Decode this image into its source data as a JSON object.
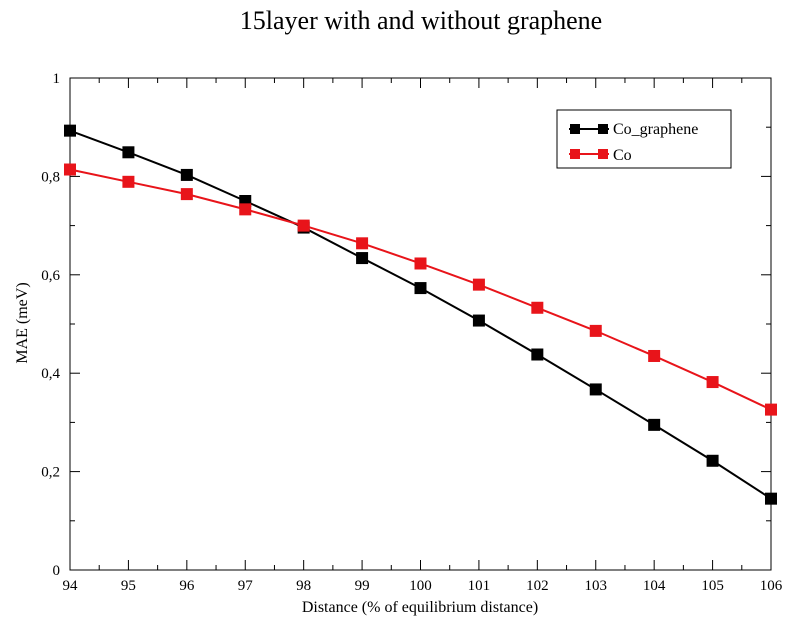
{
  "chart_data": {
    "type": "line",
    "title": "15layer with and without graphene",
    "xlabel": "Distance (% of equilibrium distance)",
    "ylabel": "MAE (meV)",
    "xlim": [
      94,
      106
    ],
    "ylim": [
      0,
      1
    ],
    "x_ticks": [
      "94",
      "95",
      "96",
      "97",
      "98",
      "99",
      "100",
      "101",
      "102",
      "103",
      "104",
      "105",
      "106"
    ],
    "y_ticks": [
      "0",
      "0,2",
      "0,4",
      "0,6",
      "0,8",
      "1"
    ],
    "x": [
      94,
      95,
      96,
      97,
      98,
      99,
      100,
      101,
      102,
      103,
      104,
      105,
      106
    ],
    "series": [
      {
        "name": "Co_graphene",
        "color": "#000000",
        "values": [
          0.893,
          0.849,
          0.803,
          0.75,
          0.696,
          0.634,
          0.573,
          0.507,
          0.438,
          0.367,
          0.295,
          0.222,
          0.145
        ]
      },
      {
        "name": "Co",
        "color": "#e8141a",
        "values": [
          0.814,
          0.789,
          0.764,
          0.733,
          0.7,
          0.664,
          0.623,
          0.58,
          0.533,
          0.486,
          0.435,
          0.382,
          0.326
        ]
      }
    ],
    "legend_position": "top-right",
    "grid": false
  }
}
